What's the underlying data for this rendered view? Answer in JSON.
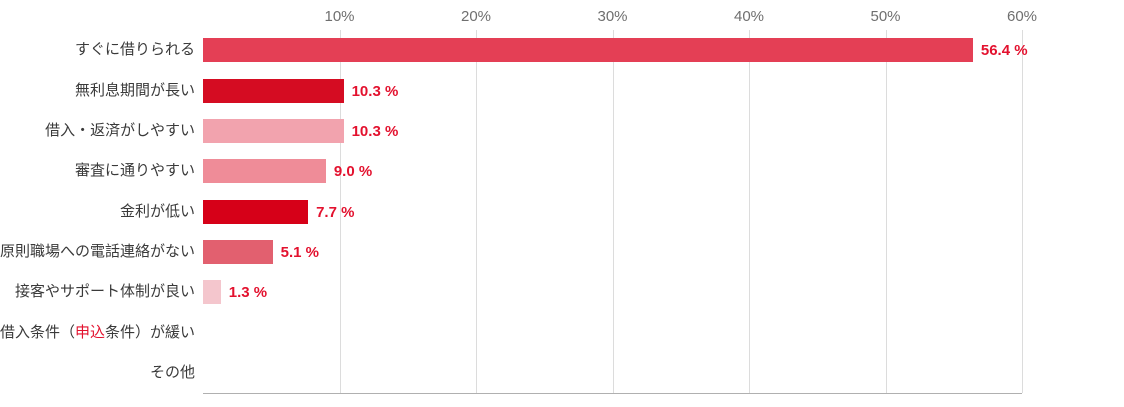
{
  "chart_data": {
    "type": "bar",
    "orientation": "horizontal",
    "title": "",
    "xlabel": "",
    "ylabel": "",
    "xlim": [
      0,
      60
    ],
    "xticks": [
      10,
      20,
      30,
      40,
      50,
      60
    ],
    "xtick_labels": [
      "10%",
      "20%",
      "30%",
      "40%",
      "50%",
      "60%"
    ],
    "grid": true,
    "categories": [
      "すぐに借りられる",
      "無利息期間が長い",
      "借入・返済がしやすい",
      "審査に通りやすい",
      "金利が低い",
      "原則職場への電話連絡がない",
      "接客やサポート体制が良い",
      "借入条件（申込条件）が緩い",
      "その他"
    ],
    "values": [
      56.4,
      10.3,
      10.3,
      9.0,
      7.7,
      5.1,
      1.3,
      0,
      0
    ],
    "value_labels": [
      "56.4 %",
      "10.3 %",
      "10.3 %",
      "9.0 %",
      "7.7 %",
      "5.1 %",
      "1.3 %",
      "",
      ""
    ],
    "bar_colors": [
      "#e43f55",
      "#d50c22",
      "#f2a3ae",
      "#ef8c98",
      "#d60018",
      "#e2606f",
      "#f4c6cd",
      "",
      ""
    ],
    "category_highlight": {
      "row_index": 7,
      "text": "申込",
      "color": "#e3112e"
    },
    "value_label_color": "#e3112e",
    "tick_label_color": "#6f6f6f",
    "gridline_color": "#dcdcdc",
    "axis_line_color": "#b0b0b0"
  }
}
